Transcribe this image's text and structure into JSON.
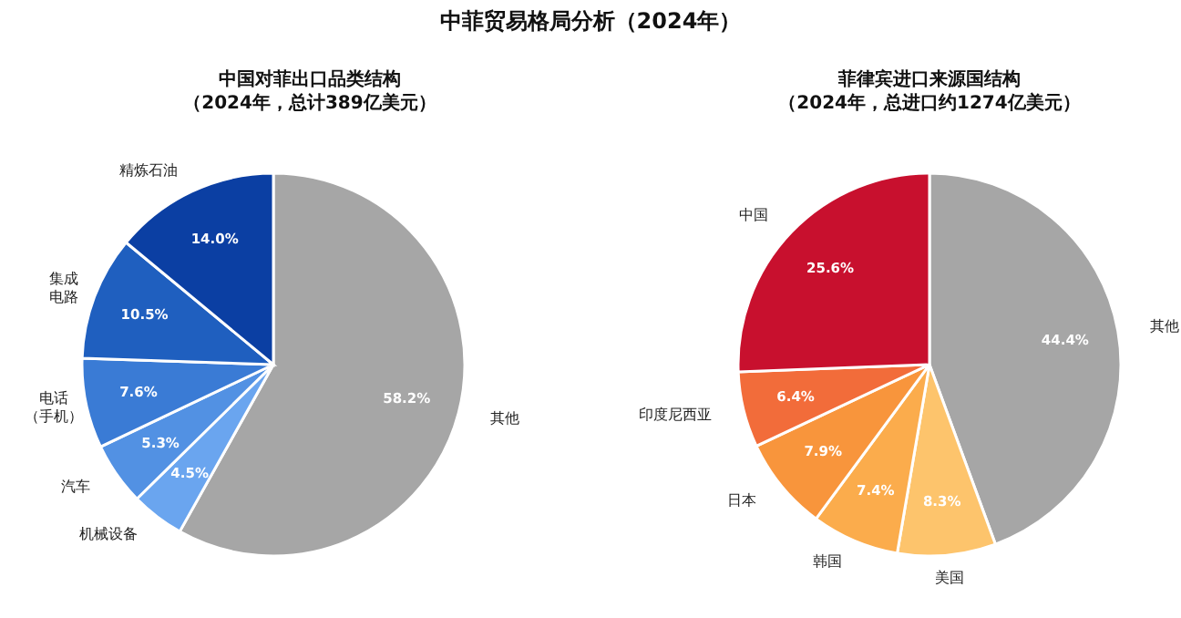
{
  "chart_data": [
    {
      "type": "other",
      "title": "中菲贸易格局分析（2024年）"
    },
    {
      "type": "pie",
      "title": "中国对菲出口品类结构",
      "subtitle": "（2024年，总计389亿美元）",
      "categories": [
        "其他",
        "机械设备",
        "汽车",
        "电话（手机）",
        "集成电路",
        "精炼石油"
      ],
      "values": [
        58.2,
        4.5,
        5.3,
        7.6,
        10.5,
        14.0
      ],
      "value_labels": [
        "58.2%",
        "4.5%",
        "5.3%",
        "7.6%",
        "10.5%",
        "14.0%"
      ],
      "colors": [
        "#a6a6a6",
        "#6aa5ef",
        "#5291e3",
        "#3a7bd5",
        "#1f5fbf",
        "#0b3fa3"
      ]
    },
    {
      "type": "pie",
      "title": "菲律宾进口来源国结构",
      "subtitle": "（2024年，总进口约1274亿美元）",
      "categories": [
        "其他",
        "美国",
        "韩国",
        "日本",
        "印度尼西亚",
        "中国"
      ],
      "values": [
        44.4,
        8.3,
        7.4,
        7.9,
        6.4,
        25.6
      ],
      "value_labels": [
        "44.4%",
        "8.3%",
        "7.4%",
        "7.9%",
        "6.4%",
        "25.6%"
      ],
      "colors": [
        "#a6a6a6",
        "#fdc46c",
        "#fbac4c",
        "#f8953c",
        "#f26c3a",
        "#c8102e"
      ]
    }
  ]
}
